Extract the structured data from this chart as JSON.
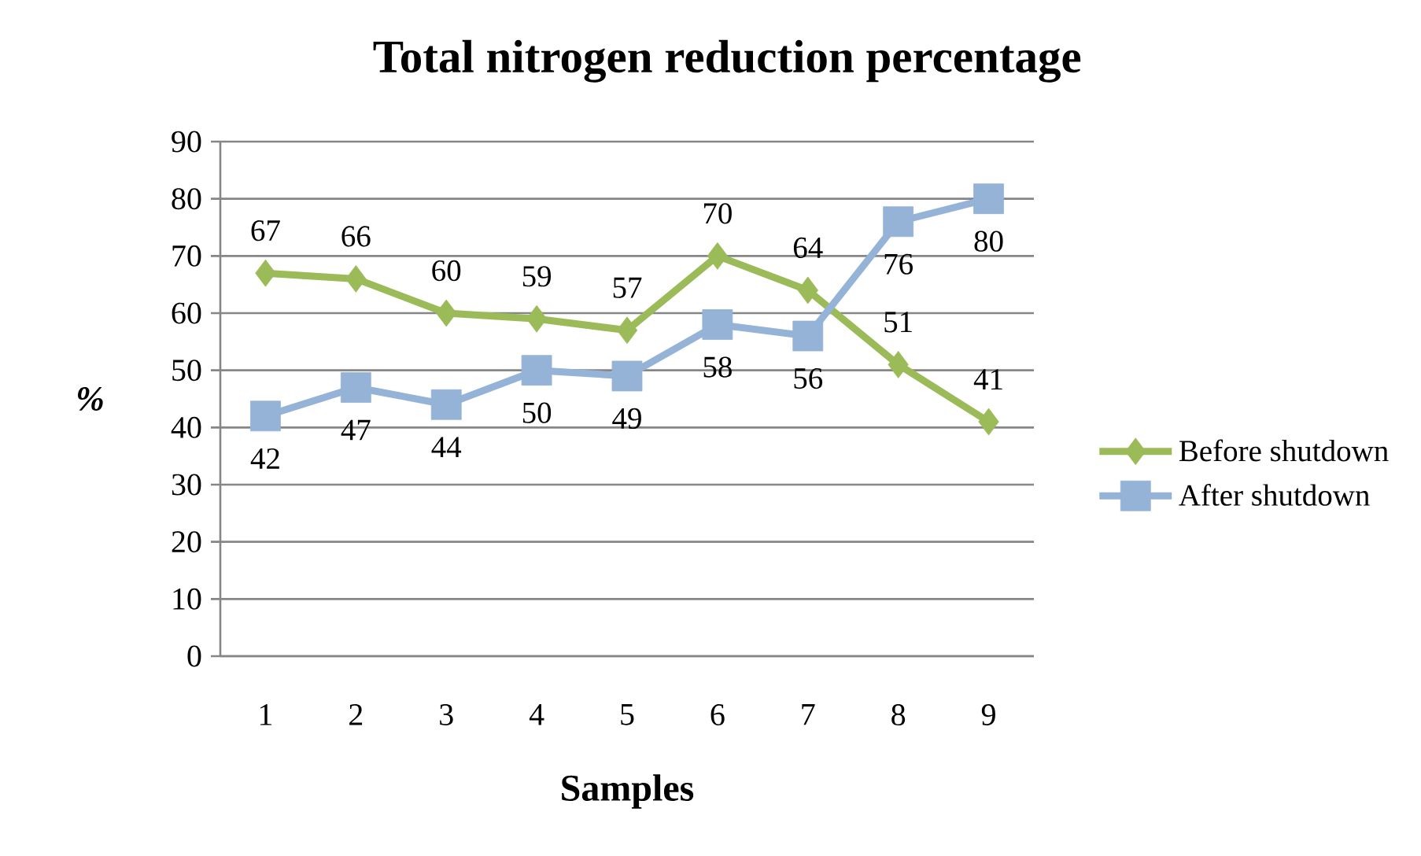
{
  "chart_data": {
    "type": "line",
    "title": "Total nitrogen reduction percentage",
    "xlabel": "Samples",
    "ylabel": "%",
    "categories": [
      "1",
      "2",
      "3",
      "4",
      "5",
      "6",
      "7",
      "8",
      "9"
    ],
    "series": [
      {
        "name": "Before shutdown",
        "color": "#9bbb59",
        "marker": "diamond",
        "values": [
          67,
          66,
          60,
          59,
          57,
          70,
          64,
          51,
          41
        ]
      },
      {
        "name": "After shutdown",
        "color": "#95b3d7",
        "marker": "square",
        "values": [
          42,
          47,
          44,
          50,
          49,
          58,
          56,
          76,
          80
        ]
      }
    ],
    "ylim": [
      0,
      90
    ],
    "yticks": [
      0,
      10,
      20,
      30,
      40,
      50,
      60,
      70,
      80,
      90
    ],
    "grid": "y",
    "legend": "right",
    "data_labels": true
  }
}
